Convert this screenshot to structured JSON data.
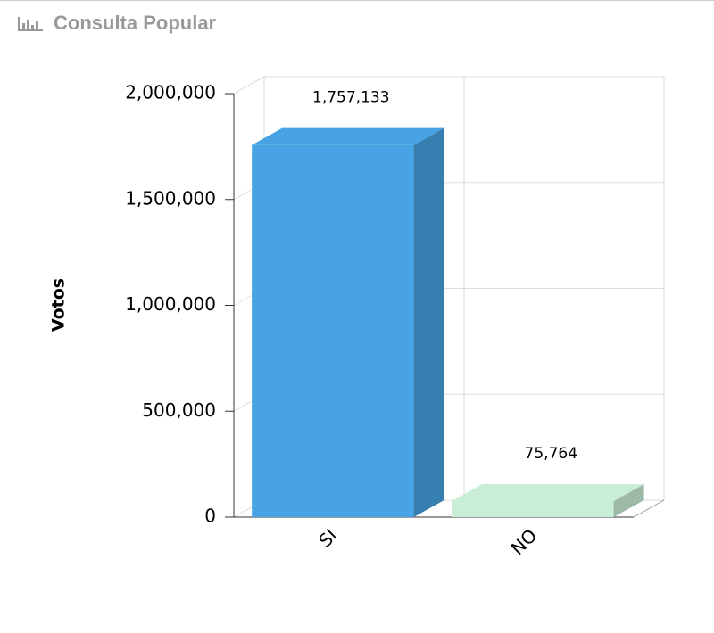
{
  "chart_data": {
    "type": "bar3d",
    "title": "Consulta Popular",
    "y_label": "Votos",
    "categories": [
      "SI",
      "NO"
    ],
    "values": [
      1757133,
      75764
    ],
    "value_labels": [
      "1,757,133",
      "75,764"
    ],
    "colors": [
      "#47a3e3",
      "#c9eed8"
    ],
    "ylim": [
      0,
      2000000
    ],
    "yticks": [
      0,
      {
        "value": 500000,
        "label": "500,000"
      },
      {
        "value": 1000000,
        "label": "1,000,000"
      },
      {
        "value": 1500000,
        "label": "1,500,000"
      },
      {
        "value": 2000000,
        "label": "2,000,000"
      }
    ],
    "grid": true
  }
}
